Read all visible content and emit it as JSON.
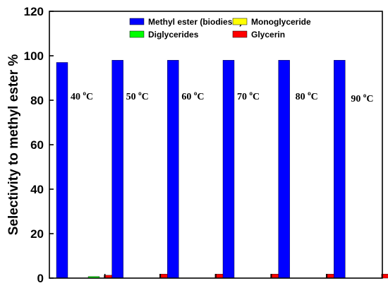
{
  "chart_data": {
    "type": "bar",
    "title": "",
    "xlabel": "",
    "ylabel": "Selectivity to methyl ester %",
    "ylim": [
      0,
      120
    ],
    "yticks": [
      "0",
      "20",
      "40",
      "60",
      "80",
      "100",
      "120"
    ],
    "grid": false,
    "legend_position": "top",
    "categories": [
      {
        "temp": "40",
        "unit": "C",
        "degree": "o"
      },
      {
        "temp": "50",
        "unit": "C",
        "degree": "o"
      },
      {
        "temp": "60",
        "unit": "C",
        "degree": "o"
      },
      {
        "temp": "70",
        "unit": "C",
        "degree": "o"
      },
      {
        "temp": "80",
        "unit": "C",
        "degree": "o"
      },
      {
        "temp": "90",
        "unit": "C",
        "degree": "o"
      }
    ],
    "series": [
      {
        "name": "Methyl ester (biodiesel)",
        "color": "#0000ff",
        "values": [
          97,
          98,
          98,
          98,
          98,
          98
        ]
      },
      {
        "name": "Monoglyceride",
        "color": "#ffff00",
        "values": [
          0,
          0,
          0,
          0,
          0,
          0
        ]
      },
      {
        "name": "Diglycerides",
        "color": "#00ff00",
        "values": [
          0.7,
          0,
          0,
          0,
          0,
          0
        ]
      },
      {
        "name": "Glycerin",
        "color": "#ff0000",
        "values": [
          1.3,
          1.8,
          1.8,
          1.8,
          1.8,
          1.8
        ]
      }
    ]
  }
}
